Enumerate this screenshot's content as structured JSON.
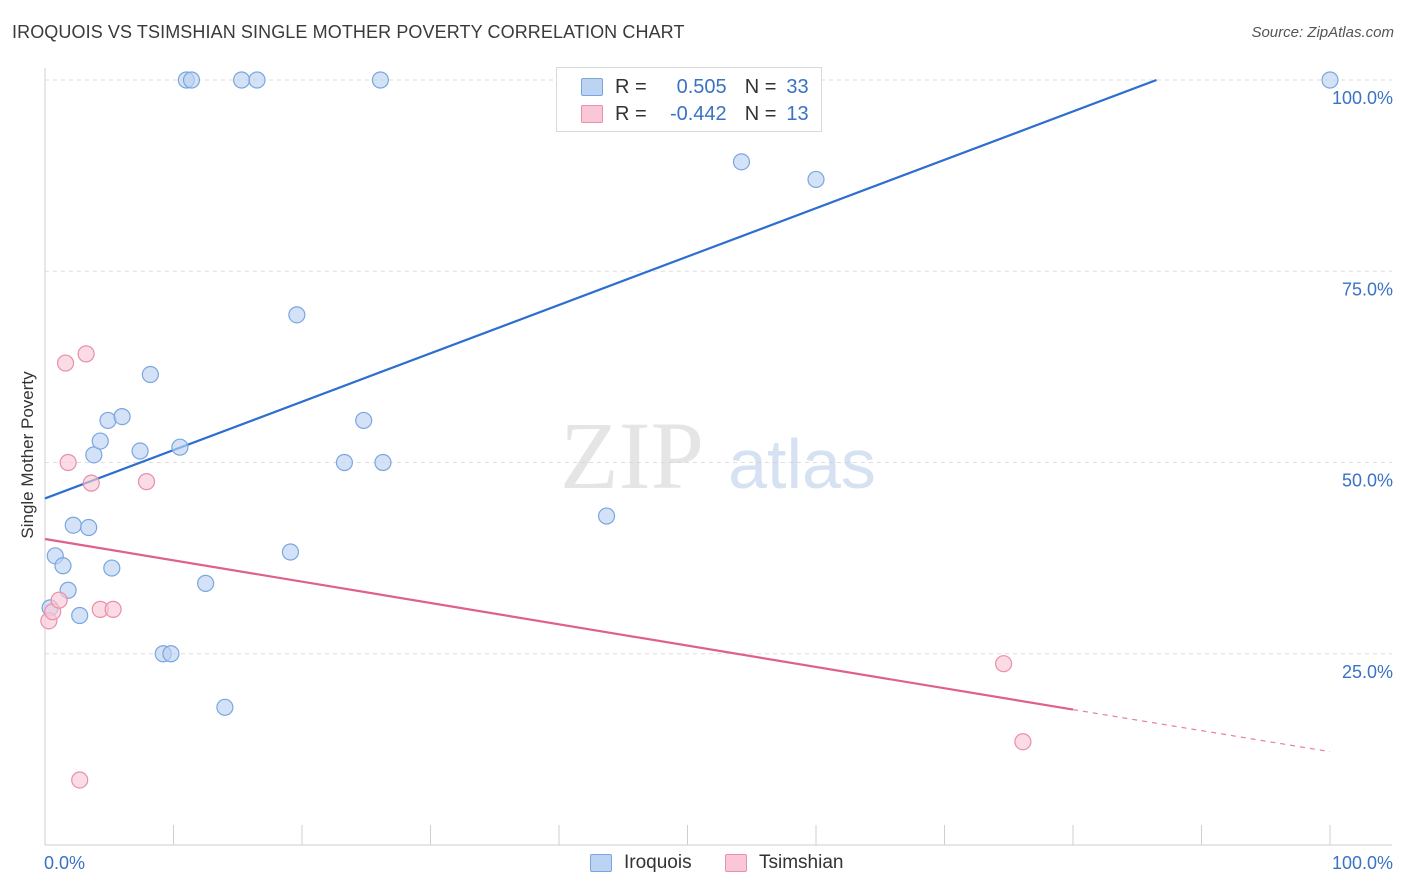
{
  "header": {
    "title": "IROQUOIS VS TSIMSHIAN SINGLE MOTHER POVERTY CORRELATION CHART",
    "source": "Source: ZipAtlas.com"
  },
  "colors": {
    "iroquois_fill": "#bcd3f3",
    "iroquois_stroke": "#7aa6df",
    "iroquois_line": "#2d6fcf",
    "tsimshian_fill": "#f9c7d5",
    "tsimshian_stroke": "#e88fab",
    "tsimshian_line": "#e0608c",
    "axis_text": "#3a72c4"
  },
  "stats": [
    {
      "r_label": "R =",
      "r_value": "0.505",
      "n_label": "N =",
      "n_value": "33"
    },
    {
      "r_label": "R =",
      "r_value": "-0.442",
      "n_label": "N =",
      "n_value": "13"
    }
  ],
  "chart_data": {
    "type": "scatter",
    "title": "IROQUOIS VS TSIMSHIAN SINGLE MOTHER POVERTY CORRELATION CHART",
    "xlabel": "",
    "ylabel": "Single Mother Poverty",
    "xlim": [
      0,
      100
    ],
    "ylim": [
      0,
      100
    ],
    "x_tick_labels": [
      "0.0%",
      "100.0%"
    ],
    "y_tick_labels": [
      "100.0%",
      "75.0%",
      "50.0%",
      "25.0%"
    ],
    "y_ticks": [
      100,
      75,
      50,
      25
    ],
    "grid": true,
    "legend_position": "bottom-center",
    "watermark": "ZIPatlas",
    "series": [
      {
        "name": "Iroquois",
        "points": [
          [
            0.4,
            31.0
          ],
          [
            0.8,
            37.8
          ],
          [
            1.4,
            36.5
          ],
          [
            1.8,
            33.3
          ],
          [
            2.2,
            41.8
          ],
          [
            2.7,
            30.0
          ],
          [
            3.4,
            41.5
          ],
          [
            3.8,
            51.0
          ],
          [
            4.3,
            52.8
          ],
          [
            4.9,
            55.5
          ],
          [
            5.2,
            36.2
          ],
          [
            6.0,
            56.0
          ],
          [
            7.4,
            51.5
          ],
          [
            8.2,
            61.5
          ],
          [
            9.2,
            25.0
          ],
          [
            9.8,
            25.0
          ],
          [
            10.5,
            52.0
          ],
          [
            11.0,
            100
          ],
          [
            11.4,
            100
          ],
          [
            12.5,
            34.2
          ],
          [
            14.0,
            18.0
          ],
          [
            15.3,
            100
          ],
          [
            16.5,
            100
          ],
          [
            19.1,
            38.3
          ],
          [
            19.6,
            69.3
          ],
          [
            23.3,
            50.0
          ],
          [
            24.8,
            55.5
          ],
          [
            26.1,
            100
          ],
          [
            26.3,
            50.0
          ],
          [
            43.7,
            43.0
          ],
          [
            54.2,
            89.3
          ],
          [
            60.0,
            87.0
          ],
          [
            100,
            100
          ]
        ],
        "trend": {
          "x0": 0,
          "y0": 45.3,
          "x1": 86.5,
          "y1": 100
        }
      },
      {
        "name": "Tsimshian",
        "points": [
          [
            0.3,
            29.3
          ],
          [
            0.6,
            30.5
          ],
          [
            1.1,
            32.0
          ],
          [
            1.6,
            63.0
          ],
          [
            1.8,
            50.0
          ],
          [
            2.7,
            8.5
          ],
          [
            3.2,
            64.2
          ],
          [
            3.6,
            47.3
          ],
          [
            4.3,
            30.8
          ],
          [
            5.3,
            30.8
          ],
          [
            7.9,
            47.5
          ],
          [
            74.6,
            23.7
          ],
          [
            76.1,
            13.5
          ]
        ],
        "trend": {
          "x0": 0,
          "y0": 40.0,
          "x1": 80.0,
          "y1": 17.7
        },
        "trend_dashed": {
          "x0": 80.0,
          "y0": 17.7,
          "x1": 100,
          "y1": 12.2
        }
      }
    ]
  }
}
